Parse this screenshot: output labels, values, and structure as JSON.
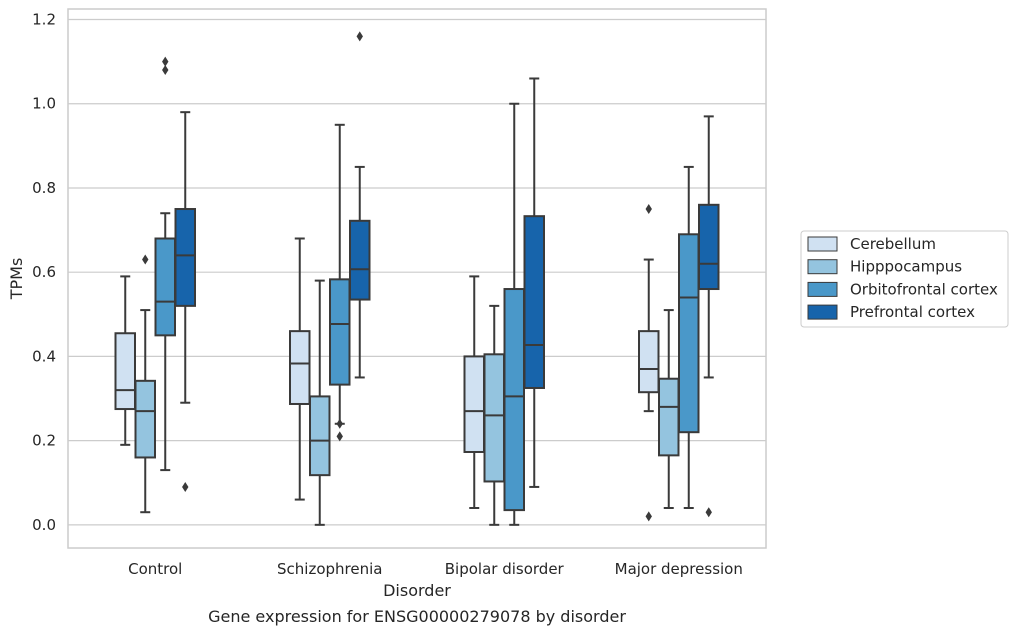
{
  "chart_data": {
    "type": "box",
    "caption": "Gene expression for ENSG00000279078 by disorder",
    "xlabel": "Disorder",
    "ylabel": "TPMs",
    "ylim": [
      -0.055,
      1.225
    ],
    "yticks": [
      0.0,
      0.2,
      0.4,
      0.6,
      0.8,
      1.0,
      1.2
    ],
    "ytick_labels": [
      "0.0",
      "0.2",
      "0.4",
      "0.6",
      "0.8",
      "1.0",
      "1.2"
    ],
    "grid": "horizontal",
    "legend_position": "right",
    "categories": [
      "Control",
      "Schizophrenia",
      "Bipolar disorder",
      "Major depression"
    ],
    "series": [
      {
        "name": "Cerebellum",
        "color": "#d0e1f2",
        "boxes": [
          {
            "whisker_low": 0.19,
            "q1": 0.275,
            "median": 0.32,
            "q3": 0.455,
            "whisker_high": 0.59,
            "outliers": []
          },
          {
            "whisker_low": 0.06,
            "q1": 0.287,
            "median": 0.383,
            "q3": 0.46,
            "whisker_high": 0.68,
            "outliers": []
          },
          {
            "whisker_low": 0.04,
            "q1": 0.173,
            "median": 0.27,
            "q3": 0.4,
            "whisker_high": 0.59,
            "outliers": []
          },
          {
            "whisker_low": 0.27,
            "q1": 0.315,
            "median": 0.37,
            "q3": 0.46,
            "whisker_high": 0.63,
            "outliers": [
              0.75,
              0.02
            ]
          }
        ]
      },
      {
        "name": "Hipppocampus",
        "color": "#94c4df",
        "boxes": [
          {
            "whisker_low": 0.03,
            "q1": 0.16,
            "median": 0.27,
            "q3": 0.342,
            "whisker_high": 0.51,
            "outliers": [
              0.63
            ]
          },
          {
            "whisker_low": 0.0,
            "q1": 0.118,
            "median": 0.2,
            "q3": 0.305,
            "whisker_high": 0.58,
            "outliers": []
          },
          {
            "whisker_low": 0.0,
            "q1": 0.103,
            "median": 0.26,
            "q3": 0.405,
            "whisker_high": 0.52,
            "outliers": []
          },
          {
            "whisker_low": 0.04,
            "q1": 0.165,
            "median": 0.28,
            "q3": 0.347,
            "whisker_high": 0.51,
            "outliers": []
          }
        ]
      },
      {
        "name": "Orbitofrontal cortex",
        "color": "#4a98c9",
        "boxes": [
          {
            "whisker_low": 0.13,
            "q1": 0.45,
            "median": 0.53,
            "q3": 0.68,
            "whisker_high": 0.74,
            "outliers": [
              1.1,
              1.08
            ]
          },
          {
            "whisker_low": 0.24,
            "q1": 0.333,
            "median": 0.477,
            "q3": 0.583,
            "whisker_high": 0.95,
            "outliers": [
              0.24,
              0.21
            ]
          },
          {
            "whisker_low": 0.0,
            "q1": 0.035,
            "median": 0.305,
            "q3": 0.56,
            "whisker_high": 1.0,
            "outliers": []
          },
          {
            "whisker_low": 0.04,
            "q1": 0.22,
            "median": 0.54,
            "q3": 0.69,
            "whisker_high": 0.85,
            "outliers": []
          }
        ]
      },
      {
        "name": "Prefrontal cortex",
        "color": "#1764ab",
        "boxes": [
          {
            "whisker_low": 0.29,
            "q1": 0.52,
            "median": 0.64,
            "q3": 0.75,
            "whisker_high": 0.98,
            "outliers": [
              0.09
            ]
          },
          {
            "whisker_low": 0.35,
            "q1": 0.535,
            "median": 0.607,
            "q3": 0.722,
            "whisker_high": 0.85,
            "outliers": [
              1.16
            ]
          },
          {
            "whisker_low": 0.09,
            "q1": 0.325,
            "median": 0.427,
            "q3": 0.733,
            "whisker_high": 1.06,
            "outliers": []
          },
          {
            "whisker_low": 0.35,
            "q1": 0.56,
            "median": 0.62,
            "q3": 0.76,
            "whisker_high": 0.97,
            "outliers": [
              0.03
            ]
          }
        ]
      }
    ]
  }
}
